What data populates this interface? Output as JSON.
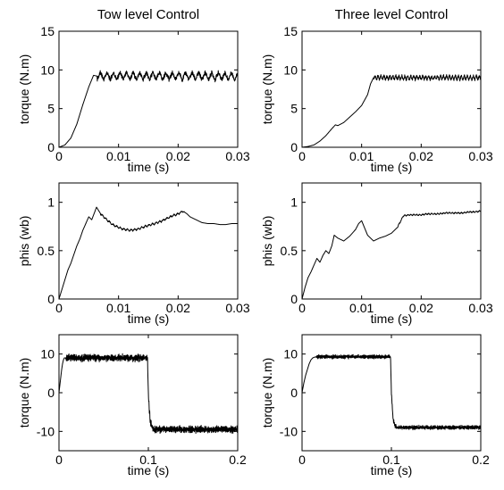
{
  "chart_data": [
    {
      "id": "p11",
      "type": "line",
      "title": "Tow level Control",
      "xlabel": "time (s)",
      "ylabel": "torque (N.m)",
      "xlim": [
        0,
        0.03
      ],
      "ylim": [
        0,
        15
      ],
      "xticks": [
        0,
        0.01,
        0.02,
        0.03
      ],
      "xtick_labels": [
        "0",
        "0.01",
        "0.02",
        "0.03"
      ],
      "yticks": [
        0,
        5,
        10,
        15
      ],
      "ytick_labels": [
        "0",
        "5",
        "10",
        "15"
      ],
      "grid": false,
      "series": [
        {
          "x": [
            0,
            0.001,
            0.002,
            0.003,
            0.004,
            0.005,
            0.0058,
            0.0064,
            0.03
          ],
          "y": [
            0,
            0.3,
            1.2,
            3.0,
            5.5,
            7.8,
            9.3,
            9.2,
            9.2
          ],
          "oscillation": {
            "from": 0.0064,
            "amplitude": 0.6,
            "period": 0.0011
          }
        }
      ]
    },
    {
      "id": "p12",
      "type": "line",
      "title": "Three level Control",
      "xlabel": "time (s)",
      "ylabel": "torque (N.m)",
      "xlim": [
        0,
        0.03
      ],
      "ylim": [
        0,
        15
      ],
      "xticks": [
        0,
        0.01,
        0.02,
        0.03
      ],
      "xtick_labels": [
        "0",
        "0.01",
        "0.02",
        "0.03"
      ],
      "yticks": [
        0,
        5,
        10,
        15
      ],
      "ytick_labels": [
        "0",
        "5",
        "10",
        "15"
      ],
      "grid": false,
      "series": [
        {
          "x": [
            0,
            0.001,
            0.002,
            0.003,
            0.004,
            0.005,
            0.0056,
            0.006,
            0.007,
            0.008,
            0.009,
            0.01,
            0.011,
            0.0115,
            0.012,
            0.03
          ],
          "y": [
            0,
            0.1,
            0.3,
            0.8,
            1.5,
            2.4,
            2.9,
            2.8,
            3.2,
            3.9,
            4.6,
            5.4,
            6.8,
            8.2,
            9.0,
            9.0
          ],
          "oscillation": {
            "from": 0.012,
            "amplitude": 0.35,
            "period": 0.0005
          }
        }
      ]
    },
    {
      "id": "p21",
      "type": "line",
      "title": "",
      "xlabel": "time (s)",
      "ylabel": "phis (wb)",
      "xlim": [
        0,
        0.03
      ],
      "ylim": [
        0,
        1.2
      ],
      "xticks": [
        0,
        0.01,
        0.02,
        0.03
      ],
      "xtick_labels": [
        "0",
        "0.01",
        "0.02",
        "0.03"
      ],
      "yticks": [
        0,
        0.5,
        1
      ],
      "ytick_labels": [
        "0",
        "0.5",
        "1"
      ],
      "grid": false,
      "series": [
        {
          "x": [
            0,
            0.0005,
            0.001,
            0.0015,
            0.002,
            0.0025,
            0.003,
            0.0035,
            0.004,
            0.0045,
            0.005,
            0.0055,
            0.006,
            0.0063,
            0.007,
            0.008,
            0.009,
            0.01,
            0.011,
            0.012,
            0.013,
            0.014,
            0.015,
            0.016,
            0.017,
            0.018,
            0.019,
            0.02,
            0.0208,
            0.0215,
            0.022,
            0.023,
            0.024,
            0.025,
            0.026,
            0.027,
            0.028,
            0.029,
            0.03
          ],
          "y": [
            0,
            0.1,
            0.2,
            0.3,
            0.37,
            0.46,
            0.55,
            0.62,
            0.71,
            0.78,
            0.85,
            0.82,
            0.9,
            0.95,
            0.88,
            0.82,
            0.77,
            0.74,
            0.72,
            0.71,
            0.72,
            0.74,
            0.76,
            0.78,
            0.8,
            0.83,
            0.86,
            0.88,
            0.91,
            0.88,
            0.85,
            0.82,
            0.79,
            0.78,
            0.78,
            0.77,
            0.77,
            0.78,
            0.78
          ],
          "oscillation": {
            "from": 0.007,
            "to": 0.021,
            "amplitude": 0.012,
            "period": 0.0006
          }
        }
      ]
    },
    {
      "id": "p22",
      "type": "line",
      "title": "",
      "xlabel": "time (s)",
      "ylabel": "phis (wb)",
      "xlim": [
        0,
        0.03
      ],
      "ylim": [
        0,
        1.2
      ],
      "xticks": [
        0,
        0.01,
        0.02,
        0.03
      ],
      "xtick_labels": [
        "0",
        "0.01",
        "0.02",
        "0.03"
      ],
      "yticks": [
        0,
        0.5,
        1
      ],
      "ytick_labels": [
        "0",
        "0.5",
        "1"
      ],
      "grid": false,
      "series": [
        {
          "x": [
            0,
            0.0005,
            0.001,
            0.0015,
            0.002,
            0.0025,
            0.003,
            0.0035,
            0.004,
            0.0045,
            0.005,
            0.0054,
            0.006,
            0.007,
            0.008,
            0.009,
            0.0095,
            0.01,
            0.011,
            0.012,
            0.013,
            0.014,
            0.015,
            0.016,
            0.017,
            0.018,
            0.019,
            0.02,
            0.021,
            0.022,
            0.023,
            0.024,
            0.025,
            0.026,
            0.027,
            0.028,
            0.029,
            0.03
          ],
          "y": [
            0,
            0.12,
            0.22,
            0.28,
            0.35,
            0.42,
            0.38,
            0.45,
            0.5,
            0.47,
            0.55,
            0.66,
            0.63,
            0.6,
            0.65,
            0.72,
            0.78,
            0.81,
            0.66,
            0.6,
            0.63,
            0.65,
            0.68,
            0.74,
            0.86,
            0.87,
            0.87,
            0.87,
            0.88,
            0.88,
            0.88,
            0.89,
            0.89,
            0.89,
            0.89,
            0.9,
            0.9,
            0.91
          ],
          "oscillation": {
            "from": 0.016,
            "amplitude": 0.008,
            "period": 0.0005
          }
        }
      ]
    },
    {
      "id": "p31",
      "type": "line",
      "title": "",
      "xlabel": "time (s)",
      "ylabel": "torque (N.m)",
      "xlim": [
        0,
        0.2
      ],
      "ylim": [
        -15,
        15
      ],
      "xticks": [
        0,
        0.1,
        0.2
      ],
      "xtick_labels": [
        "0",
        "0.1",
        "0.2"
      ],
      "yticks": [
        -10,
        0,
        10
      ],
      "ytick_labels": [
        "-10",
        "0",
        "10"
      ],
      "grid": false,
      "series": [
        {
          "x": [
            0,
            0.001,
            0.002,
            0.003,
            0.004,
            0.005,
            0.006,
            0.0075,
            0.099,
            0.1,
            0.101,
            0.102,
            0.104,
            0.106,
            0.2
          ],
          "y": [
            0,
            2,
            4,
            6,
            7.5,
            8.5,
            9.0,
            9.0,
            9.0,
            0,
            -4,
            -7,
            -9,
            -9.5,
            -9.5
          ],
          "oscillation": {
            "from": 0.0075,
            "amplitude": 0.9,
            "period": 0.0008
          }
        }
      ]
    },
    {
      "id": "p32",
      "type": "line",
      "title": "",
      "xlabel": "time (s)",
      "ylabel": "torque (N.m)",
      "xlim": [
        0,
        0.2
      ],
      "ylim": [
        -15,
        15
      ],
      "xticks": [
        0,
        0.1,
        0.2
      ],
      "xtick_labels": [
        "0",
        "0.1",
        "0.2"
      ],
      "yticks": [
        -10,
        0,
        10
      ],
      "ytick_labels": [
        "-10",
        "0",
        "10"
      ],
      "grid": false,
      "series": [
        {
          "x": [
            0,
            0.002,
            0.004,
            0.006,
            0.008,
            0.01,
            0.012,
            0.014,
            0.016,
            0.099,
            0.1,
            0.101,
            0.102,
            0.104,
            0.106,
            0.2
          ],
          "y": [
            0,
            2.5,
            4.5,
            6,
            7.5,
            8.5,
            9.0,
            9.2,
            9.3,
            9.3,
            0,
            -4,
            -7,
            -8.5,
            -9,
            -9
          ],
          "oscillation": {
            "from": 0.016,
            "amplitude": 0.5,
            "period": 0.0006
          }
        }
      ]
    }
  ]
}
